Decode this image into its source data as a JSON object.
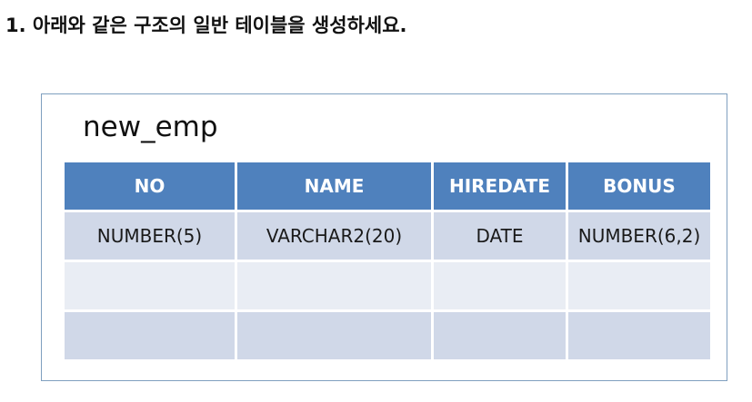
{
  "instruction": "1. 아래와 같은 구조의 일반 테이블을 생성하세요.",
  "table": {
    "name": "new_emp",
    "columns": [
      "NO",
      "NAME",
      "HIREDATE",
      "BONUS"
    ],
    "rows": [
      [
        "NUMBER(5)",
        "VARCHAR2(20)",
        "DATE",
        "NUMBER(6,2)"
      ],
      [
        "",
        "",
        "",
        ""
      ],
      [
        "",
        "",
        "",
        ""
      ]
    ],
    "colors": {
      "header_background": "#4f81bd",
      "header_text": "#ffffff",
      "row_band_dark": "#d0d8e8",
      "row_band_light": "#e9edf4",
      "frame_border": "#7f9fbf"
    }
  }
}
